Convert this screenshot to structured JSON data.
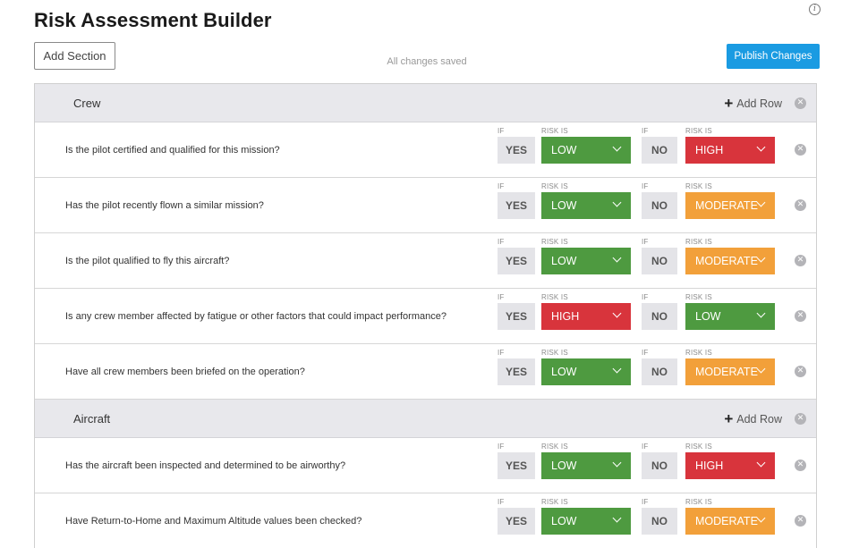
{
  "header": {
    "title": "Risk Assessment Builder",
    "info_icon": "i",
    "add_section_label": "Add Section",
    "saved_status": "All changes saved",
    "publish_label": "Publish Changes"
  },
  "labels": {
    "if": "IF",
    "risk_is": "RISK IS",
    "yes": "YES",
    "no": "NO",
    "add_row": "Add Row"
  },
  "colors": {
    "LOW": "#4e9a40",
    "HIGH": "#d8343c",
    "MODERATE": "#f2a03a"
  },
  "sections": [
    {
      "title": "Crew",
      "rows": [
        {
          "question": "Is the pilot certified and qualified for this mission?",
          "yes_risk": "LOW",
          "no_risk": "HIGH"
        },
        {
          "question": "Has the pilot recently flown a similar mission?",
          "yes_risk": "LOW",
          "no_risk": "MODERATE"
        },
        {
          "question": "Is the pilot qualified to fly this aircraft?",
          "yes_risk": "LOW",
          "no_risk": "MODERATE"
        },
        {
          "question": "Is any crew member affected by fatigue or other factors that could impact performance?",
          "yes_risk": "HIGH",
          "no_risk": "LOW"
        },
        {
          "question": "Have all crew members been briefed on the operation?",
          "yes_risk": "LOW",
          "no_risk": "MODERATE"
        }
      ]
    },
    {
      "title": "Aircraft",
      "rows": [
        {
          "question": "Has the aircraft been inspected and determined to be airworthy?",
          "yes_risk": "LOW",
          "no_risk": "HIGH"
        },
        {
          "question": "Have Return-to-Home and Maximum Altitude values been checked?",
          "yes_risk": "LOW",
          "no_risk": "MODERATE"
        }
      ]
    }
  ]
}
